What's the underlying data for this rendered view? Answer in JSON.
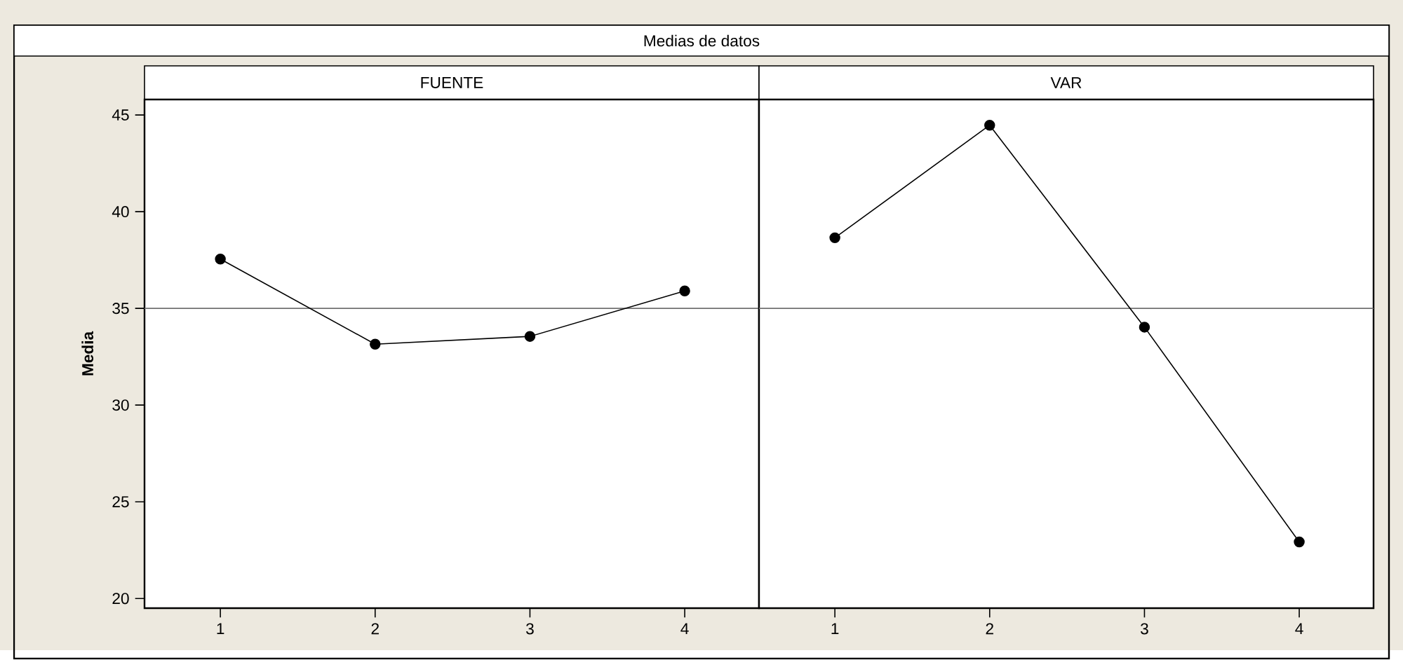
{
  "chart_data": [
    {
      "type": "line",
      "title": "Medias de datos",
      "subtitle": "FUENTE",
      "ylabel": "Media",
      "categories": [
        "1",
        "2",
        "3",
        "4"
      ],
      "series": [
        {
          "color": "#000000",
          "values": [
            37.55,
            33.15,
            33.55,
            35.9
          ]
        }
      ],
      "ylim": [
        19.5,
        45.8
      ],
      "yticks": [
        20,
        25,
        30,
        35,
        40,
        45
      ],
      "marker": "circle",
      "line_style": "solid",
      "ref_lines": [
        {
          "axis": "y",
          "value": 35,
          "color": "#707070"
        }
      ]
    },
    {
      "type": "line",
      "subtitle": "VAR",
      "categories": [
        "1",
        "2",
        "3",
        "4"
      ],
      "series": [
        {
          "color": "#000000",
          "values": [
            38.65,
            44.47,
            34.03,
            22.92
          ]
        }
      ],
      "ylim": [
        19.5,
        45.8
      ],
      "tick_labels": "x",
      "marker": "circle",
      "line_style": "solid",
      "ref_lines": [
        {
          "axis": "y",
          "value": 35,
          "color": "#707070"
        }
      ]
    }
  ]
}
